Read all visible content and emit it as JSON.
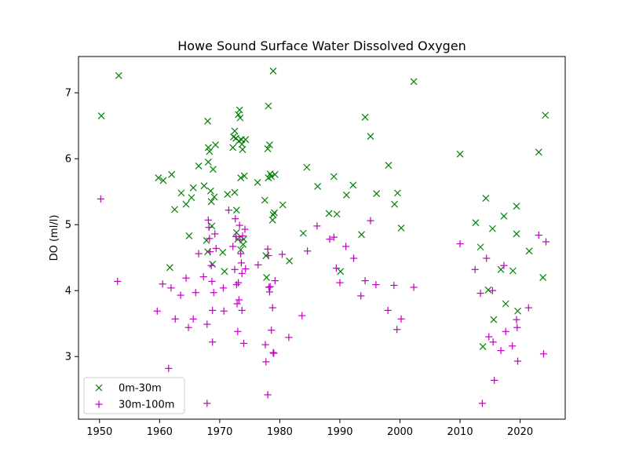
{
  "chart_data": {
    "type": "scatter",
    "title": "Howe Sound Surface Water Dissolved Oxygen",
    "xlabel": "",
    "ylabel": "DO (ml/l)",
    "xlim": [
      1946.5,
      2027.5
    ],
    "ylim": [
      2.05,
      7.55
    ],
    "xticks": [
      1950,
      1960,
      1970,
      1980,
      1990,
      2000,
      2010,
      2020
    ],
    "yticks": [
      3,
      4,
      5,
      6,
      7
    ],
    "grid": false,
    "legend_position": "lower-left",
    "series": [
      {
        "name": "0m-30m",
        "marker": "x",
        "color": "#008000",
        "points": [
          [
            1950.3,
            6.65
          ],
          [
            1953.2,
            7.26
          ],
          [
            1959.8,
            5.71
          ],
          [
            1960.6,
            5.67
          ],
          [
            1961.7,
            4.35
          ],
          [
            1962.0,
            5.76
          ],
          [
            1962.5,
            5.23
          ],
          [
            1963.6,
            5.48
          ],
          [
            1964.4,
            5.31
          ],
          [
            1964.9,
            4.83
          ],
          [
            1965.3,
            5.41
          ],
          [
            1965.6,
            5.56
          ],
          [
            1966.5,
            5.89
          ],
          [
            1967.4,
            5.59
          ],
          [
            1967.8,
            4.76
          ],
          [
            1968.0,
            4.59
          ],
          [
            1968.0,
            6.57
          ],
          [
            1968.1,
            6.17
          ],
          [
            1968.1,
            5.95
          ],
          [
            1968.3,
            6.11
          ],
          [
            1968.5,
            5.51
          ],
          [
            1968.6,
            5.35
          ],
          [
            1968.7,
            4.98
          ],
          [
            1968.8,
            4.4
          ],
          [
            1968.9,
            5.84
          ],
          [
            1969.1,
            5.42
          ],
          [
            1969.3,
            6.21
          ],
          [
            1970.5,
            4.58
          ],
          [
            1970.8,
            4.29
          ],
          [
            1971.3,
            5.46
          ],
          [
            1972.2,
            6.17
          ],
          [
            1972.3,
            6.33
          ],
          [
            1972.5,
            6.42
          ],
          [
            1972.5,
            5.49
          ],
          [
            1972.7,
            6.31
          ],
          [
            1972.8,
            5.22
          ],
          [
            1972.8,
            4.88
          ],
          [
            1973.0,
            4.78
          ],
          [
            1973.1,
            6.67
          ],
          [
            1973.2,
            6.27
          ],
          [
            1973.3,
            6.74
          ],
          [
            1973.4,
            6.62
          ],
          [
            1973.5,
            4.62
          ],
          [
            1973.5,
            5.71
          ],
          [
            1973.6,
            6.29
          ],
          [
            1973.7,
            6.22
          ],
          [
            1973.8,
            6.14
          ],
          [
            1973.9,
            4.7
          ],
          [
            1974.0,
            4.78
          ],
          [
            1974.1,
            5.74
          ],
          [
            1974.3,
            6.29
          ],
          [
            1976.3,
            5.64
          ],
          [
            1977.5,
            5.37
          ],
          [
            1977.7,
            4.53
          ],
          [
            1977.8,
            4.2
          ],
          [
            1978.0,
            6.15
          ],
          [
            1978.1,
            5.71
          ],
          [
            1978.1,
            6.8
          ],
          [
            1978.3,
            6.21
          ],
          [
            1978.4,
            5.77
          ],
          [
            1978.6,
            5.73
          ],
          [
            1978.8,
            5.07
          ],
          [
            1978.9,
            5.15
          ],
          [
            1978.9,
            7.33
          ],
          [
            1979.1,
            5.18
          ],
          [
            1979.2,
            5.76
          ],
          [
            1980.5,
            5.3
          ],
          [
            1981.6,
            4.45
          ],
          [
            1983.9,
            4.87
          ],
          [
            1984.5,
            5.87
          ],
          [
            1986.3,
            5.58
          ],
          [
            1988.2,
            5.17
          ],
          [
            1989.0,
            5.73
          ],
          [
            1989.5,
            5.16
          ],
          [
            1990.1,
            4.29
          ],
          [
            1991.1,
            5.45
          ],
          [
            1992.2,
            5.6
          ],
          [
            1993.6,
            4.85
          ],
          [
            1994.2,
            6.63
          ],
          [
            1995.1,
            6.34
          ],
          [
            1996.1,
            5.47
          ],
          [
            1998.1,
            5.9
          ],
          [
            1999.1,
            5.31
          ],
          [
            1999.6,
            5.48
          ],
          [
            2000.2,
            4.95
          ],
          [
            2002.3,
            7.17
          ],
          [
            2010.0,
            6.07
          ],
          [
            2012.6,
            5.03
          ],
          [
            2013.4,
            4.66
          ],
          [
            2013.8,
            3.15
          ],
          [
            2014.3,
            5.4
          ],
          [
            2014.7,
            4.01
          ],
          [
            2015.4,
            4.94
          ],
          [
            2015.6,
            3.56
          ],
          [
            2016.8,
            4.32
          ],
          [
            2017.3,
            5.13
          ],
          [
            2017.6,
            3.8
          ],
          [
            2018.8,
            4.3
          ],
          [
            2019.4,
            5.28
          ],
          [
            2019.4,
            4.86
          ],
          [
            2019.6,
            3.69
          ],
          [
            2021.5,
            4.6
          ],
          [
            2023.1,
            6.1
          ],
          [
            2023.8,
            4.2
          ],
          [
            2024.2,
            6.66
          ]
        ]
      },
      {
        "name": "30m-100m",
        "marker": "+",
        "color": "#bf00bf",
        "points": [
          [
            1950.2,
            5.39
          ],
          [
            1953.0,
            4.14
          ],
          [
            1959.6,
            3.69
          ],
          [
            1960.5,
            4.1
          ],
          [
            1961.5,
            2.82
          ],
          [
            1961.9,
            4.04
          ],
          [
            1962.6,
            3.57
          ],
          [
            1963.5,
            3.93
          ],
          [
            1964.4,
            4.19
          ],
          [
            1964.8,
            3.44
          ],
          [
            1965.6,
            3.57
          ],
          [
            1966.0,
            3.97
          ],
          [
            1966.5,
            4.56
          ],
          [
            1967.3,
            4.21
          ],
          [
            1967.9,
            3.49
          ],
          [
            1967.9,
            2.29
          ],
          [
            1968.1,
            5.07
          ],
          [
            1968.2,
            4.96
          ],
          [
            1968.3,
            4.79
          ],
          [
            1968.4,
            4.59
          ],
          [
            1968.6,
            4.38
          ],
          [
            1968.7,
            4.14
          ],
          [
            1968.8,
            3.7
          ],
          [
            1968.8,
            3.22
          ],
          [
            1969.0,
            3.97
          ],
          [
            1969.2,
            4.86
          ],
          [
            1969.4,
            4.64
          ],
          [
            1970.6,
            4.04
          ],
          [
            1970.7,
            3.69
          ],
          [
            1971.5,
            5.22
          ],
          [
            1972.2,
            4.67
          ],
          [
            1972.5,
            4.32
          ],
          [
            1972.6,
            5.09
          ],
          [
            1972.7,
            4.82
          ],
          [
            1972.8,
            4.09
          ],
          [
            1972.9,
            3.8
          ],
          [
            1973.0,
            3.38
          ],
          [
            1973.1,
            4.12
          ],
          [
            1973.2,
            3.86
          ],
          [
            1973.3,
            4.99
          ],
          [
            1973.4,
            4.77
          ],
          [
            1973.5,
            4.56
          ],
          [
            1973.6,
            4.42
          ],
          [
            1973.7,
            4.26
          ],
          [
            1973.7,
            3.7
          ],
          [
            1973.8,
            4.83
          ],
          [
            1974.0,
            3.2
          ],
          [
            1974.2,
            4.93
          ],
          [
            1974.3,
            4.33
          ],
          [
            1976.4,
            4.39
          ],
          [
            1977.6,
            3.18
          ],
          [
            1977.7,
            2.92
          ],
          [
            1978.0,
            2.42
          ],
          [
            1978.0,
            4.63
          ],
          [
            1978.1,
            4.53
          ],
          [
            1978.2,
            4.05
          ],
          [
            1978.3,
            3.98
          ],
          [
            1978.4,
            4.06
          ],
          [
            1978.6,
            3.4
          ],
          [
            1978.8,
            3.74
          ],
          [
            1978.9,
            3.06
          ],
          [
            1979.0,
            3.05
          ],
          [
            1979.2,
            4.15
          ],
          [
            1980.4,
            4.55
          ],
          [
            1981.5,
            3.29
          ],
          [
            1983.7,
            3.62
          ],
          [
            1984.6,
            4.6
          ],
          [
            1986.2,
            4.98
          ],
          [
            1988.3,
            4.78
          ],
          [
            1989.0,
            4.81
          ],
          [
            1989.4,
            4.34
          ],
          [
            1990.0,
            4.12
          ],
          [
            1991.0,
            4.67
          ],
          [
            1992.3,
            4.49
          ],
          [
            1993.5,
            3.92
          ],
          [
            1994.2,
            4.15
          ],
          [
            1995.1,
            5.06
          ],
          [
            1996.0,
            4.09
          ],
          [
            1998.0,
            3.7
          ],
          [
            1999.0,
            4.08
          ],
          [
            1999.5,
            3.41
          ],
          [
            2000.2,
            3.57
          ],
          [
            2002.3,
            4.05
          ],
          [
            2010.0,
            4.71
          ],
          [
            2012.5,
            4.32
          ],
          [
            2013.4,
            3.96
          ],
          [
            2013.7,
            2.29
          ],
          [
            2014.4,
            4.49
          ],
          [
            2014.8,
            3.3
          ],
          [
            2015.4,
            4.0
          ],
          [
            2015.5,
            3.22
          ],
          [
            2015.7,
            2.64
          ],
          [
            2016.8,
            3.09
          ],
          [
            2017.3,
            4.38
          ],
          [
            2017.6,
            3.38
          ],
          [
            2018.7,
            3.16
          ],
          [
            2019.4,
            3.56
          ],
          [
            2019.5,
            3.44
          ],
          [
            2019.6,
            2.93
          ],
          [
            2021.4,
            3.74
          ],
          [
            2023.1,
            4.84
          ],
          [
            2023.9,
            3.04
          ],
          [
            2024.3,
            4.74
          ]
        ]
      }
    ]
  }
}
